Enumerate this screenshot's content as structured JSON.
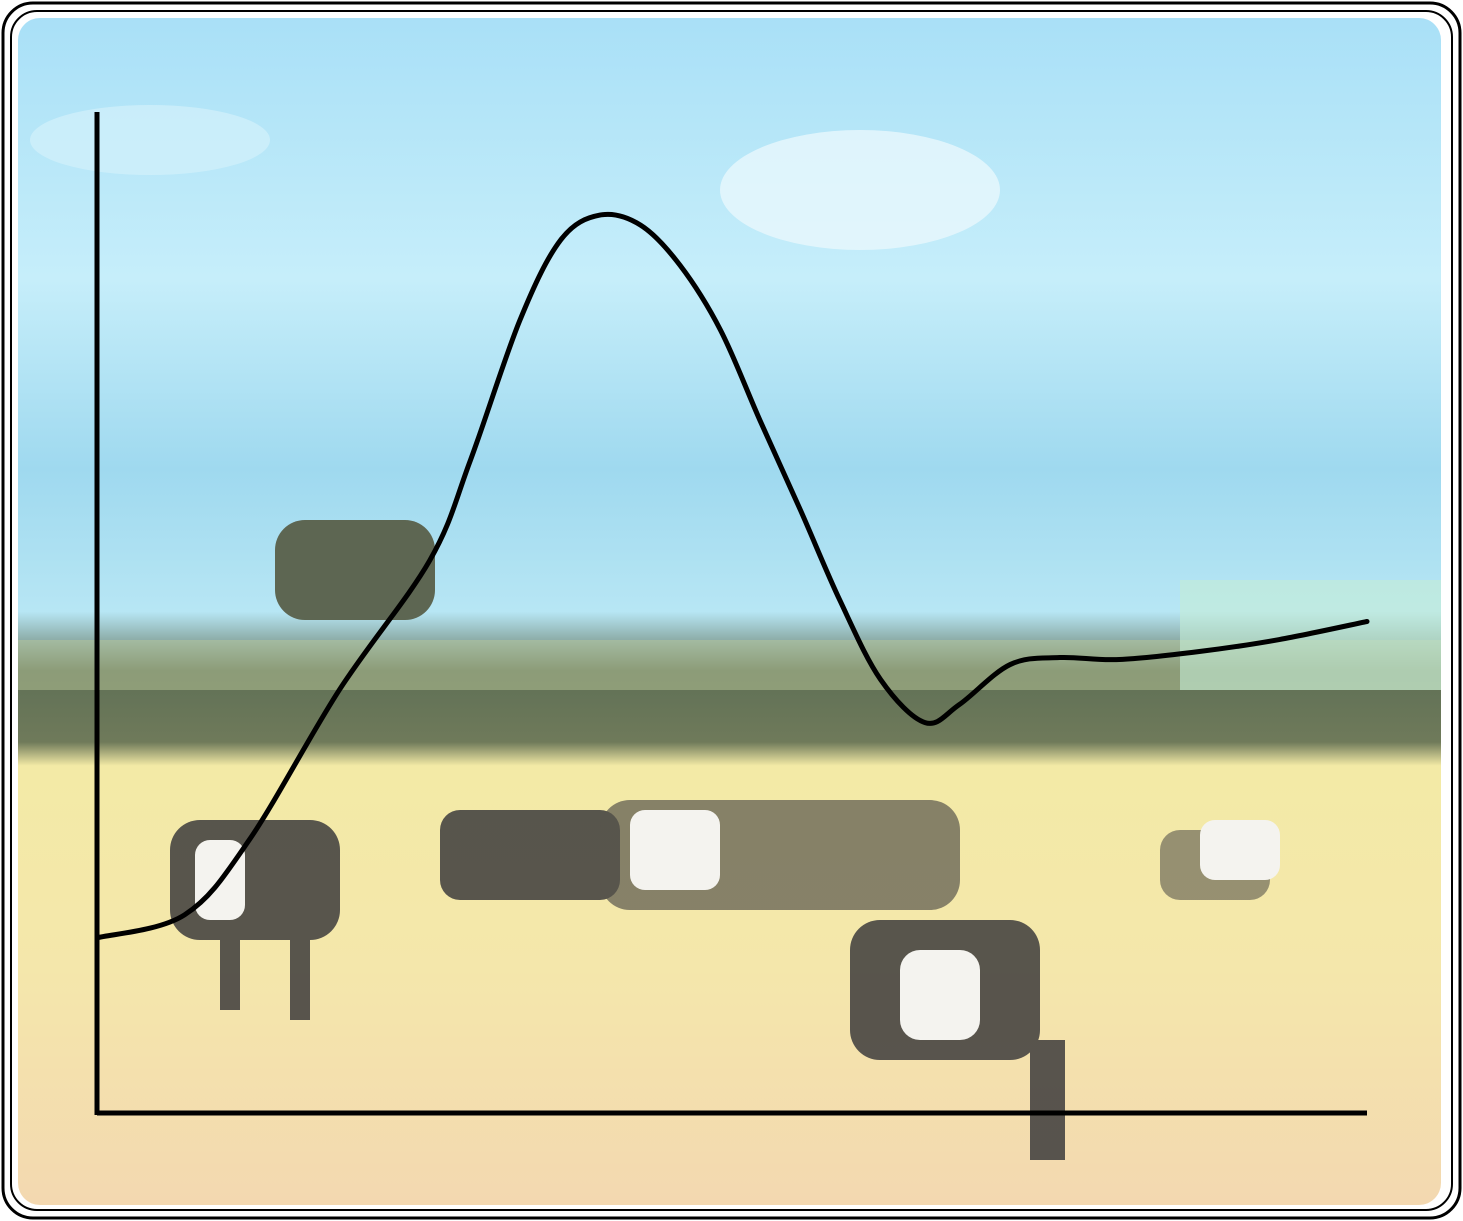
{
  "chart_data": {
    "type": "line",
    "x": [
      0,
      6.9,
      12.0,
      19.1,
      26.2,
      29.4,
      33.3,
      36.5,
      39.6,
      42.8,
      45.9,
      49.1,
      52.2,
      55.4,
      58.5,
      61.7,
      65.2,
      67.9,
      71.9,
      75.8,
      80.5,
      86.8,
      93.1,
      100
    ],
    "series": [
      {
        "color": "#000000",
        "values": [
          17.5,
          19.8,
          27.3,
          42.3,
          55.2,
          65.2,
          79.2,
          87.2,
          89.7,
          88.7,
          84.7,
          78.2,
          69.2,
          60.2,
          51.2,
          43.3,
          39.0,
          40.8,
          44.8,
          45.5,
          45.3,
          46.1,
          47.3,
          49.1
        ]
      }
    ],
    "xlim": [
      0,
      100
    ],
    "ylim": [
      0,
      100
    ]
  }
}
